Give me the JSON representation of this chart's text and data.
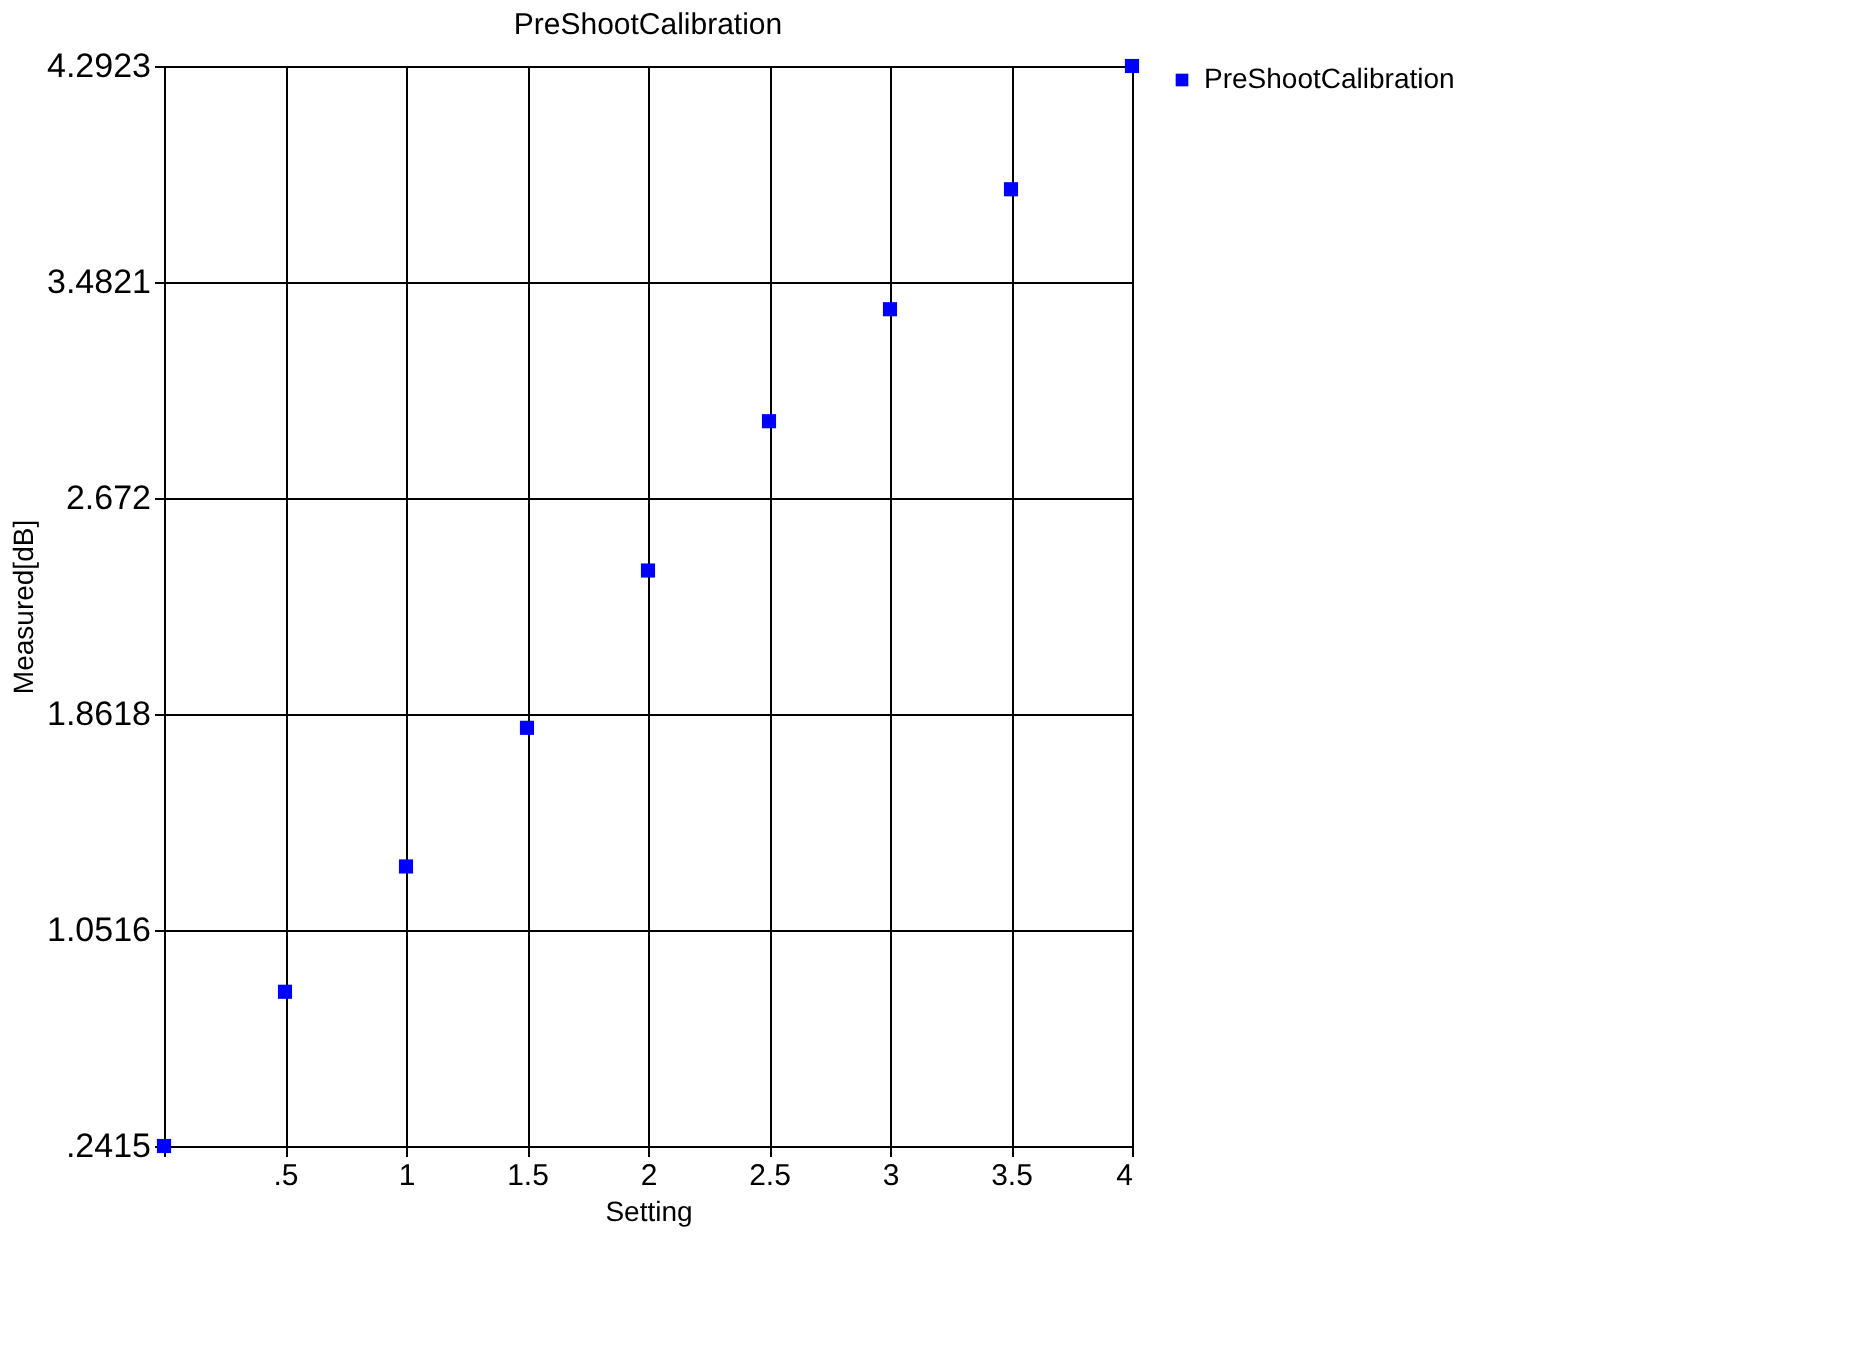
{
  "chart_data": {
    "type": "scatter",
    "title": "PreShootCalibration",
    "xlabel": "Setting",
    "ylabel": "Measured[dB]",
    "x": [
      0,
      0.5,
      1,
      1.5,
      2,
      2.5,
      3,
      3.5,
      4
    ],
    "series": [
      {
        "name": "PreShootCalibration",
        "color": "#0000ff",
        "values": [
          0.2415,
          0.82,
          1.29,
          1.81,
          2.4,
          2.96,
          3.38,
          3.83,
          4.2923
        ]
      }
    ],
    "xlim": [
      0,
      4
    ],
    "xticks": [
      {
        "value": 0,
        "label": null
      },
      {
        "value": 0.5,
        "label": ".5"
      },
      1,
      1.5,
      2,
      2.5,
      3,
      3.5,
      4
    ],
    "ylim": [
      0.2415,
      4.2923
    ],
    "yticks": [
      {
        "value": 0.2415,
        "label": ".2415"
      },
      1.0516,
      1.8618,
      2.672,
      3.4821,
      4.2923
    ],
    "grid": true,
    "legend": "top right",
    "marker": "square"
  }
}
